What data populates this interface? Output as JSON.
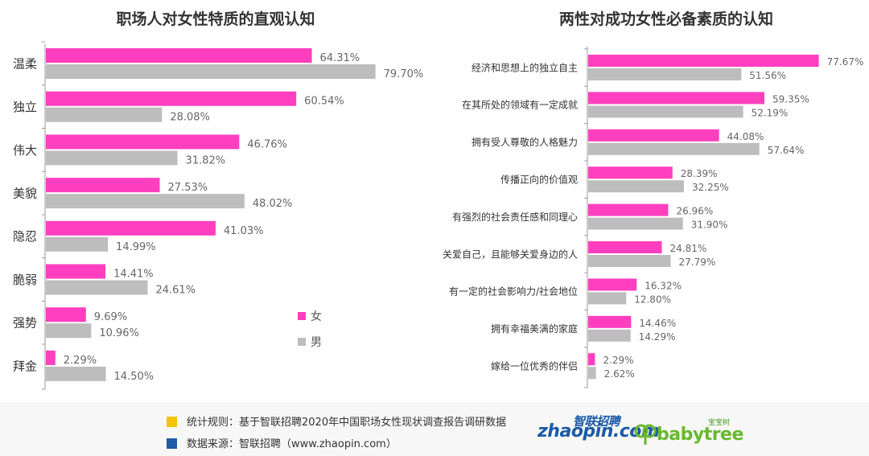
{
  "chart_data": [
    {
      "type": "bar",
      "orientation": "horizontal",
      "title": "职场人对女性特质的直观认知",
      "categories": [
        "温柔",
        "独立",
        "伟大",
        "美貌",
        "隐忍",
        "脆弱",
        "强势",
        "拜金"
      ],
      "series": [
        {
          "name": "女",
          "color": "#ff3fbf",
          "values": [
            64.31,
            60.54,
            46.76,
            27.53,
            41.03,
            14.41,
            9.69,
            2.29
          ],
          "labels": [
            "64.31%",
            "60.54%",
            "46.76%",
            "27.53%",
            "41.03%",
            "14.41%",
            "9.69%",
            "2.29%"
          ]
        },
        {
          "name": "男",
          "color": "#bdbdbd",
          "values": [
            79.7,
            28.08,
            31.82,
            48.02,
            14.99,
            24.61,
            10.96,
            14.5
          ],
          "labels": [
            "79.70%",
            "28.08%",
            "31.82%",
            "48.02%",
            "14.99%",
            "24.61%",
            "10.96%",
            "14.50%"
          ]
        }
      ],
      "xlim": [
        0,
        100
      ],
      "legend": "bottom-right"
    },
    {
      "type": "bar",
      "orientation": "horizontal",
      "title": "两性对成功女性必备素质的认知",
      "categories": [
        "经济和思想上的独立自主",
        "在其所处的领域有一定成就",
        "拥有受人尊敬的人格魅力",
        "传播正向的价值观",
        "有强烈的社会责任感和同理心",
        "关爱自己，且能够关爱身边的人",
        "有一定的社会影响力/社会地位",
        "拥有幸福美满的家庭",
        "嫁给一位优秀的伴侣"
      ],
      "series": [
        {
          "name": "女",
          "color": "#ff3fbf",
          "values": [
            77.67,
            59.35,
            44.08,
            28.39,
            26.96,
            24.81,
            16.32,
            14.46,
            2.29
          ],
          "labels": [
            "77.67%",
            "59.35%",
            "44.08%",
            "28.39%",
            "26.96%",
            "24.81%",
            "16.32%",
            "14.46%",
            "2.29%"
          ]
        },
        {
          "name": "男",
          "color": "#bdbdbd",
          "values": [
            51.56,
            52.19,
            57.64,
            32.25,
            31.9,
            27.79,
            12.8,
            14.29,
            2.62
          ],
          "labels": [
            "51.56%",
            "52.19%",
            "57.64%",
            "32.25%",
            "31.90%",
            "27.79%",
            "12.80%",
            "14.29%",
            "2.62%"
          ]
        }
      ],
      "xlim": [
        0,
        100
      ]
    }
  ],
  "legend": {
    "female": "女",
    "male": "男"
  },
  "footer": {
    "stat_rule": "统计规则：基于智联招聘2020年中国职场女性现状调查报告调研数据",
    "source": "数据来源：智联招聘（www.zhaopin.com）",
    "stat_color": "#f5c400",
    "source_color": "#1f5aa6"
  },
  "logos": {
    "zhaopin_word": "zhaopin.com",
    "zhaopin_cn": "智联招聘",
    "babytree_word": "babytree",
    "babytree_tag": "宝宝树"
  }
}
